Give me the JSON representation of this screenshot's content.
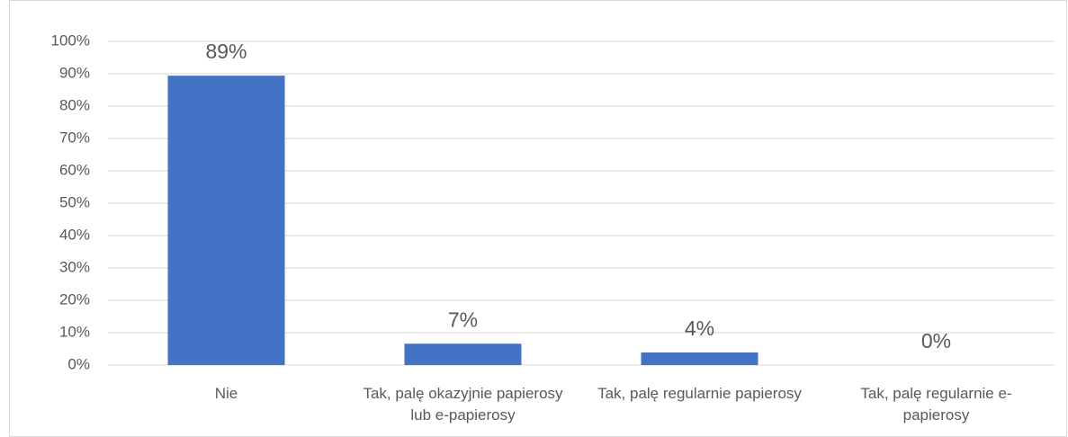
{
  "chart_data": {
    "type": "bar",
    "categories": [
      "Nie",
      "Tak, palę okazyjnie papierosy lub e-papierosy",
      "Tak, palę regularnie papierosy",
      "Tak, palę regularnie e-papierosy"
    ],
    "values": [
      89.4,
      6.6,
      3.9,
      0
    ],
    "value_labels": [
      "89%",
      "7%",
      "4%",
      "0%"
    ],
    "color": "#4472c4",
    "ylim": [
      0,
      100
    ],
    "yticks": [
      {
        "value": 0,
        "label": "0%"
      },
      {
        "value": 10,
        "label": "10%"
      },
      {
        "value": 20,
        "label": "20%"
      },
      {
        "value": 30,
        "label": "30%"
      },
      {
        "value": 40,
        "label": "40%"
      },
      {
        "value": 50,
        "label": "50%"
      },
      {
        "value": 60,
        "label": "60%"
      },
      {
        "value": 70,
        "label": "70%"
      },
      {
        "value": 80,
        "label": "80%"
      },
      {
        "value": 90,
        "label": "90%"
      },
      {
        "value": 100,
        "label": "100%"
      }
    ],
    "grid": true
  }
}
